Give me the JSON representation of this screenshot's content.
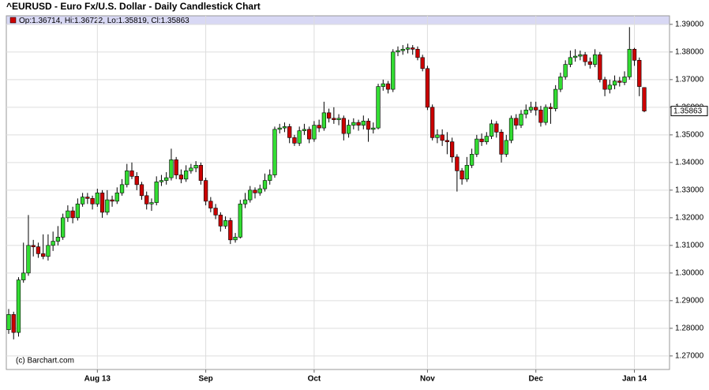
{
  "chart_data": {
    "type": "candlestick",
    "title": "^EURUSD - Euro Fx/U.S. Dollar - Daily Candlestick Chart",
    "legend": "Op:1.36714, Hi:1.36722, Lo:1.35819, Cl:1.35863",
    "legend_color": "#cc0000",
    "credit": "(c) Barchart.com",
    "up_color": "#33dd33",
    "down_color": "#cc0000",
    "grid": true,
    "ylim": [
      1.2651,
      1.3931
    ],
    "yticks": [
      {
        "value": 1.27,
        "label": "1.27000"
      },
      {
        "value": 1.28,
        "label": "1.28000"
      },
      {
        "value": 1.29,
        "label": "1.29000"
      },
      {
        "value": 1.3,
        "label": "1.30000"
      },
      {
        "value": 1.31,
        "label": "1.31000"
      },
      {
        "value": 1.32,
        "label": "1.32000"
      },
      {
        "value": 1.33,
        "label": "1.33000"
      },
      {
        "value": 1.34,
        "label": "1.34000"
      },
      {
        "value": 1.35,
        "label": "1.35000"
      },
      {
        "value": 1.36,
        "label": "1.36000"
      },
      {
        "value": 1.37,
        "label": "1.37000"
      },
      {
        "value": 1.38,
        "label": "1.38000"
      },
      {
        "value": 1.39,
        "label": "1.39000"
      }
    ],
    "categories": [
      null,
      null,
      null,
      null,
      null,
      null,
      null,
      null,
      null,
      null,
      null,
      null,
      null,
      null,
      null,
      null,
      null,
      null,
      "Aug 13",
      null,
      null,
      null,
      null,
      null,
      null,
      null,
      null,
      null,
      null,
      null,
      null,
      null,
      null,
      null,
      null,
      null,
      null,
      null,
      null,
      null,
      "Sep",
      null,
      null,
      null,
      null,
      null,
      null,
      null,
      null,
      null,
      null,
      null,
      null,
      null,
      null,
      null,
      null,
      null,
      null,
      null,
      null,
      null,
      "Oct",
      null,
      null,
      null,
      null,
      null,
      null,
      null,
      null,
      null,
      null,
      null,
      null,
      null,
      null,
      null,
      null,
      null,
      null,
      null,
      null,
      null,
      null,
      "Nov",
      null,
      null,
      null,
      null,
      null,
      null,
      null,
      null,
      null,
      null,
      null,
      null,
      null,
      null,
      null,
      null,
      null,
      null,
      null,
      null,
      null,
      "Dec",
      null,
      null,
      null,
      null,
      null,
      null,
      null,
      null,
      null,
      null,
      null,
      null,
      null,
      null,
      null,
      null,
      null,
      null,
      null,
      "Jan 14",
      null,
      null
    ],
    "open": [
      1.2795,
      1.285,
      1.2785,
      1.2975,
      1.3,
      1.31,
      1.3095,
      1.307,
      1.306,
      1.31,
      1.3115,
      1.313,
      1.32,
      1.3225,
      1.32,
      1.325,
      1.3275,
      1.327,
      1.325,
      1.329,
      1.322,
      1.3265,
      1.326,
      1.329,
      1.332,
      1.337,
      1.335,
      1.332,
      1.328,
      1.325,
      1.3255,
      1.333,
      1.3335,
      1.3345,
      1.341,
      1.3355,
      1.334,
      1.337,
      1.338,
      1.339,
      1.3335,
      1.326,
      1.3235,
      1.321,
      1.317,
      1.319,
      1.312,
      1.313,
      1.325,
      1.3265,
      1.33,
      1.329,
      1.3305,
      1.3335,
      1.3355,
      1.352,
      1.3525,
      1.353,
      1.349,
      1.347,
      1.3515,
      1.352,
      1.3485,
      1.3535,
      1.3525,
      1.358,
      1.356,
      1.3555,
      1.356,
      1.3505,
      1.3535,
      1.3545,
      1.3535,
      1.355,
      1.352,
      1.3525,
      1.3675,
      1.3685,
      1.3665,
      1.38,
      1.3805,
      1.381,
      1.3815,
      1.381,
      1.378,
      1.374,
      1.36,
      1.349,
      1.35,
      1.348,
      1.3475,
      1.342,
      1.337,
      1.334,
      1.339,
      1.343,
      1.3485,
      1.3475,
      1.3495,
      1.354,
      1.351,
      1.343,
      1.348,
      1.356,
      1.3535,
      1.3575,
      1.359,
      1.36,
      1.359,
      1.3545,
      1.36,
      1.3595,
      1.3665,
      1.371,
      1.3755,
      1.378,
      1.3785,
      1.379,
      1.3765,
      1.3755,
      1.379,
      1.37,
      1.3665,
      1.368,
      1.3695,
      1.369,
      1.371,
      1.381,
      1.377,
      1.36714
    ],
    "high": [
      1.287,
      1.286,
      1.2985,
      1.311,
      1.321,
      1.312,
      1.311,
      1.314,
      1.314,
      1.315,
      1.317,
      1.3215,
      1.3245,
      1.324,
      1.327,
      1.329,
      1.329,
      1.328,
      1.3305,
      1.33,
      1.33,
      1.328,
      1.331,
      1.334,
      1.3395,
      1.34,
      1.3365,
      1.333,
      1.3295,
      1.327,
      1.335,
      1.3355,
      1.3365,
      1.345,
      1.342,
      1.3375,
      1.339,
      1.3395,
      1.3405,
      1.34,
      1.3345,
      1.3275,
      1.325,
      1.322,
      1.3205,
      1.32,
      1.3145,
      1.3265,
      1.329,
      1.3315,
      1.331,
      1.332,
      1.336,
      1.3375,
      1.353,
      1.354,
      1.3545,
      1.354,
      1.35,
      1.353,
      1.354,
      1.353,
      1.355,
      1.3555,
      1.362,
      1.3595,
      1.36,
      1.3575,
      1.357,
      1.3555,
      1.356,
      1.3555,
      1.357,
      1.356,
      1.3545,
      1.3685,
      1.37,
      1.3695,
      1.381,
      1.382,
      1.3825,
      1.383,
      1.3825,
      1.382,
      1.379,
      1.375,
      1.361,
      1.352,
      1.352,
      1.351,
      1.349,
      1.343,
      1.338,
      1.342,
      1.345,
      1.35,
      1.3505,
      1.351,
      1.3555,
      1.355,
      1.352,
      1.35,
      1.357,
      1.3575,
      1.359,
      1.361,
      1.362,
      1.362,
      1.3605,
      1.361,
      1.3615,
      1.368,
      1.3725,
      1.377,
      1.3805,
      1.381,
      1.3805,
      1.38,
      1.378,
      1.381,
      1.38,
      1.371,
      1.37,
      1.3715,
      1.371,
      1.373,
      1.389,
      1.3815,
      1.378,
      1.36722
    ],
    "low": [
      1.278,
      1.276,
      1.277,
      1.2965,
      1.299,
      1.306,
      1.3055,
      1.305,
      1.3045,
      1.308,
      1.31,
      1.312,
      1.3185,
      1.318,
      1.319,
      1.324,
      1.325,
      1.323,
      1.324,
      1.32,
      1.321,
      1.324,
      1.325,
      1.328,
      1.331,
      1.334,
      1.33,
      1.3265,
      1.323,
      1.3225,
      1.3245,
      1.3315,
      1.332,
      1.3335,
      1.334,
      1.3325,
      1.333,
      1.336,
      1.3365,
      1.332,
      1.3245,
      1.322,
      1.3195,
      1.315,
      1.316,
      1.3105,
      1.311,
      1.3125,
      1.3235,
      1.3255,
      1.327,
      1.328,
      1.3295,
      1.332,
      1.3345,
      1.3505,
      1.351,
      1.347,
      1.346,
      1.346,
      1.35,
      1.347,
      1.3475,
      1.351,
      1.3515,
      1.3545,
      1.354,
      1.3535,
      1.348,
      1.349,
      1.352,
      1.3515,
      1.352,
      1.3475,
      1.3505,
      1.352,
      1.366,
      1.365,
      1.3655,
      1.3785,
      1.379,
      1.3795,
      1.379,
      1.377,
      1.373,
      1.359,
      1.348,
      1.347,
      1.346,
      1.343,
      1.34,
      1.3295,
      1.332,
      1.333,
      1.338,
      1.342,
      1.346,
      1.3465,
      1.3485,
      1.349,
      1.34,
      1.342,
      1.347,
      1.352,
      1.3525,
      1.356,
      1.358,
      1.357,
      1.353,
      1.3535,
      1.354,
      1.3585,
      1.3655,
      1.37,
      1.3745,
      1.3765,
      1.377,
      1.375,
      1.374,
      1.3745,
      1.369,
      1.364,
      1.365,
      1.3665,
      1.3675,
      1.368,
      1.37,
      1.375,
      1.364,
      1.35819
    ],
    "close": [
      1.285,
      1.2785,
      1.2975,
      1.3,
      1.31,
      1.3095,
      1.307,
      1.306,
      1.31,
      1.3115,
      1.313,
      1.32,
      1.3225,
      1.32,
      1.325,
      1.3275,
      1.327,
      1.325,
      1.329,
      1.322,
      1.3265,
      1.326,
      1.329,
      1.332,
      1.337,
      1.335,
      1.332,
      1.328,
      1.325,
      1.3255,
      1.333,
      1.3335,
      1.3345,
      1.341,
      1.3355,
      1.334,
      1.337,
      1.338,
      1.339,
      1.3335,
      1.326,
      1.3235,
      1.321,
      1.317,
      1.319,
      1.312,
      1.313,
      1.325,
      1.3265,
      1.33,
      1.329,
      1.3305,
      1.3335,
      1.3355,
      1.352,
      1.3525,
      1.353,
      1.349,
      1.347,
      1.3515,
      1.352,
      1.3485,
      1.3535,
      1.3525,
      1.358,
      1.356,
      1.3555,
      1.356,
      1.3505,
      1.3535,
      1.3545,
      1.3535,
      1.355,
      1.352,
      1.3525,
      1.3675,
      1.3685,
      1.3665,
      1.38,
      1.3805,
      1.381,
      1.3815,
      1.381,
      1.378,
      1.374,
      1.36,
      1.349,
      1.35,
      1.348,
      1.3475,
      1.342,
      1.337,
      1.334,
      1.339,
      1.343,
      1.3485,
      1.3475,
      1.3495,
      1.354,
      1.351,
      1.343,
      1.348,
      1.356,
      1.3535,
      1.3575,
      1.359,
      1.36,
      1.359,
      1.3545,
      1.36,
      1.3595,
      1.3665,
      1.371,
      1.3755,
      1.378,
      1.3785,
      1.379,
      1.3765,
      1.3755,
      1.379,
      1.37,
      1.3665,
      1.368,
      1.3695,
      1.369,
      1.371,
      1.381,
      1.377,
      1.3675,
      1.35863
    ]
  }
}
